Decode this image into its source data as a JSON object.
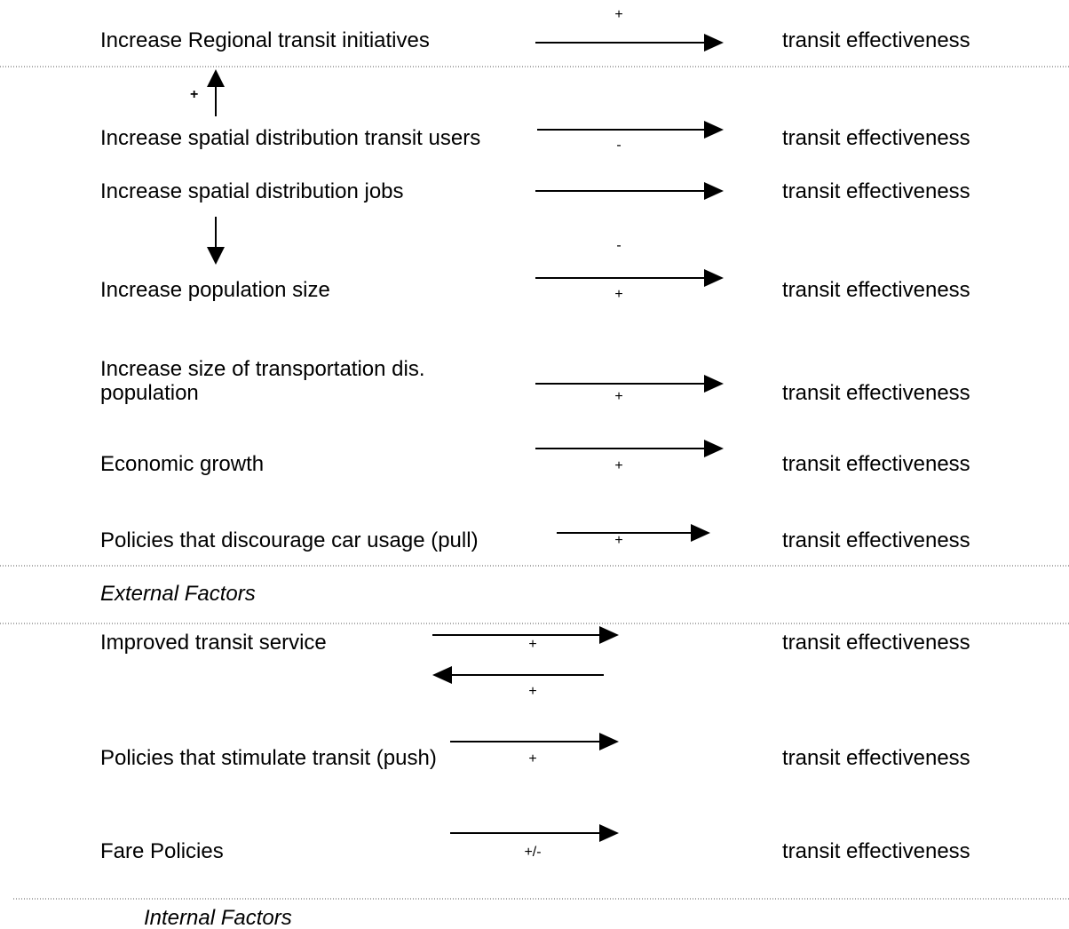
{
  "rows": [
    {
      "factor": "Increase Regional transit initiatives",
      "sign": "+",
      "target": "transit effectiveness"
    },
    {
      "factor": "Increase spatial distribution transit users",
      "sign": "-",
      "target": "transit effectiveness"
    },
    {
      "factor": "Increase  spatial distribution jobs",
      "sign": "-",
      "target": "transit effectiveness"
    },
    {
      "factor": "Increase population size",
      "sign": "+",
      "target": "transit effectiveness"
    },
    {
      "factor": [
        "Increase size of transportation dis.",
        "population"
      ],
      "sign": "+",
      "target": "transit effectiveness"
    },
    {
      "factor": "Economic growth",
      "sign": "+",
      "target": "transit effectiveness"
    },
    {
      "factor": "Policies that discourage car usage (pull)",
      "sign": "+",
      "target": "transit effectiveness"
    },
    {
      "factor": "Improved transit service",
      "sign": "+",
      "reverse_sign": "+",
      "target": "transit effectiveness"
    },
    {
      "factor": "Policies that stimulate transit (push)",
      "sign": "+",
      "target": "transit effectiveness"
    },
    {
      "factor": "Fare Policies",
      "sign": "+/-",
      "target": "transit effectiveness"
    }
  ],
  "links": [
    {
      "sign": "+"
    }
  ],
  "sections": [
    "External Factors",
    "Internal Factors"
  ]
}
